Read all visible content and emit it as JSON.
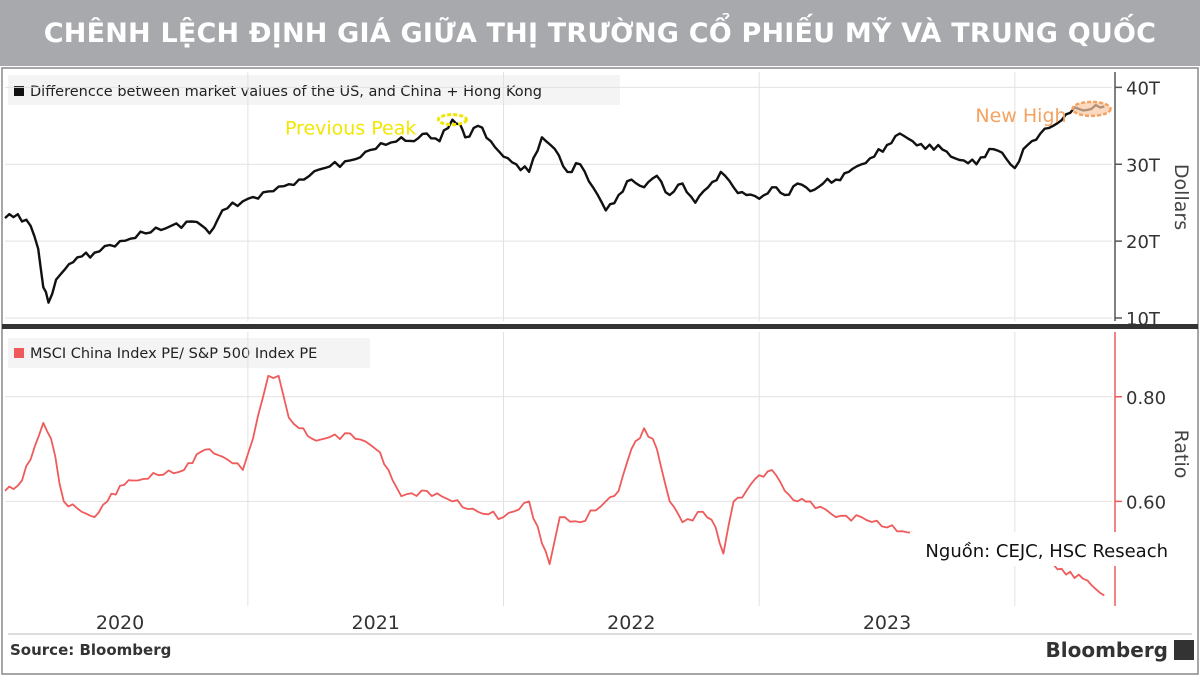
{
  "banner": {
    "title": "CHÊNH LỆCH ĐỊNH GIÁ GIỮA THỊ TRƯỜNG CỔ PHIẾU MỸ VÀ TRUNG QUỐC"
  },
  "source_note": "Nguồn: CEJC, HSC Reseach",
  "footer": {
    "source": "Source: Bloomberg",
    "brand": "Bloomberg"
  },
  "colors": {
    "top_line": "#111111",
    "bottom_line": "#ef5b5b",
    "previous_peak": "#f2e600",
    "new_high": "#f4a261",
    "grid": "#e2e2e2",
    "axis": "#555555"
  },
  "chart_data": [
    {
      "type": "line",
      "legend": "Differencce between market values of the US, and China + Hong Kong",
      "ylabel": "Dollars",
      "ylim": [
        10,
        42
      ],
      "yticks": [
        10,
        20,
        30,
        40
      ],
      "ytick_labels": [
        "10T",
        "20T",
        "30T",
        "40T"
      ],
      "xlim": [
        2019.55,
        2023.88
      ],
      "annotations": [
        {
          "text": "Previous Peak",
          "x": 2021.3,
          "y": 35.8
        },
        {
          "text": "New High",
          "x": 2023.8,
          "y": 37.2
        }
      ],
      "series": [
        {
          "name": "Differencce between market values of the US, and China + Hong Kong",
          "x": [
            2019.55,
            2019.6,
            2019.65,
            2019.68,
            2019.7,
            2019.72,
            2019.75,
            2019.8,
            2019.85,
            2019.9,
            2020.0,
            2020.1,
            2020.2,
            2020.3,
            2020.35,
            2020.4,
            2020.5,
            2020.6,
            2020.7,
            2020.8,
            2020.9,
            2021.0,
            2021.1,
            2021.15,
            2021.2,
            2021.25,
            2021.3,
            2021.33,
            2021.35,
            2021.4,
            2021.45,
            2021.5,
            2021.55,
            2021.6,
            2021.65,
            2021.7,
            2021.75,
            2021.8,
            2021.85,
            2021.9,
            2021.95,
            2022.0,
            2022.05,
            2022.1,
            2022.15,
            2022.2,
            2022.25,
            2022.3,
            2022.35,
            2022.4,
            2022.45,
            2022.5,
            2022.55,
            2022.6,
            2022.65,
            2022.7,
            2022.75,
            2022.8,
            2022.85,
            2022.9,
            2022.95,
            2023.0,
            2023.05,
            2023.1,
            2023.15,
            2023.2,
            2023.25,
            2023.3,
            2023.35,
            2023.4,
            2023.45,
            2023.5,
            2023.55,
            2023.6,
            2023.65,
            2023.7,
            2023.75,
            2023.8,
            2023.85
          ],
          "values": [
            23,
            23.5,
            22,
            19,
            14,
            12,
            15,
            17,
            18,
            18.5,
            20,
            21,
            22,
            22.5,
            21,
            24,
            25.5,
            26.5,
            28,
            29.5,
            30.5,
            32,
            33.5,
            33,
            34,
            33,
            35.8,
            35.2,
            33.5,
            35,
            33,
            31,
            30,
            29,
            33.5,
            32,
            29,
            30,
            27,
            24,
            26,
            28,
            27,
            28.5,
            26,
            27.5,
            25,
            27,
            29,
            27,
            26,
            25.5,
            27,
            26,
            27.5,
            26.5,
            27.5,
            28,
            29,
            30,
            31,
            32.5,
            34,
            33,
            32,
            32.5,
            31,
            30.5,
            30,
            32,
            31.5,
            29.5,
            32.5,
            34,
            35,
            36.5,
            37.2,
            37.2,
            37.5
          ]
        }
      ]
    },
    {
      "type": "line",
      "legend": "MSCI China Index PE/ S&P 500 Index PE",
      "ylabel": "Ratio",
      "ylim": [
        0.4,
        0.92
      ],
      "yticks": [
        0.6,
        0.8
      ],
      "ytick_labels": [
        "0.60",
        "0.80"
      ],
      "xlim": [
        2019.55,
        2023.88
      ],
      "xticks": [
        2020.0,
        2021.0,
        2022.0,
        2023.0
      ],
      "xtick_labels": [
        "2020",
        "2021",
        "2022",
        "2023"
      ],
      "series": [
        {
          "name": "MSCI China Index PE/ S&P 500 Index PE",
          "x": [
            2019.55,
            2019.6,
            2019.65,
            2019.7,
            2019.73,
            2019.78,
            2019.85,
            2019.9,
            2019.95,
            2020.0,
            2020.05,
            2020.15,
            2020.25,
            2020.3,
            2020.35,
            2020.42,
            2020.48,
            2020.52,
            2020.58,
            2020.62,
            2020.66,
            2020.7,
            2020.75,
            2020.8,
            2020.9,
            2021.0,
            2021.05,
            2021.1,
            2021.2,
            2021.3,
            2021.4,
            2021.5,
            2021.6,
            2021.65,
            2021.68,
            2021.72,
            2021.8,
            2021.9,
            2021.95,
            2022.0,
            2022.05,
            2022.1,
            2022.15,
            2022.2,
            2022.28,
            2022.33,
            2022.36,
            2022.4,
            2022.45,
            2022.5,
            2022.55,
            2022.6,
            2022.65,
            2022.7,
            2022.8,
            2022.9,
            2023.0,
            2023.1,
            2023.2,
            2023.3,
            2023.4,
            2023.5,
            2023.6,
            2023.65,
            2023.7,
            2023.75,
            2023.8,
            2023.85
          ],
          "values": [
            0.62,
            0.63,
            0.68,
            0.75,
            0.72,
            0.6,
            0.58,
            0.57,
            0.6,
            0.63,
            0.64,
            0.65,
            0.66,
            0.69,
            0.7,
            0.68,
            0.66,
            0.72,
            0.84,
            0.84,
            0.76,
            0.74,
            0.72,
            0.72,
            0.73,
            0.7,
            0.66,
            0.61,
            0.62,
            0.6,
            0.58,
            0.57,
            0.6,
            0.52,
            0.48,
            0.57,
            0.56,
            0.6,
            0.62,
            0.7,
            0.74,
            0.7,
            0.6,
            0.56,
            0.58,
            0.55,
            0.5,
            0.6,
            0.62,
            0.65,
            0.66,
            0.62,
            0.6,
            0.6,
            0.57,
            0.57,
            0.55,
            0.54,
            0.52,
            0.53,
            0.52,
            0.52,
            0.5,
            0.48,
            0.46,
            0.46,
            0.44,
            0.42
          ]
        }
      ]
    }
  ]
}
